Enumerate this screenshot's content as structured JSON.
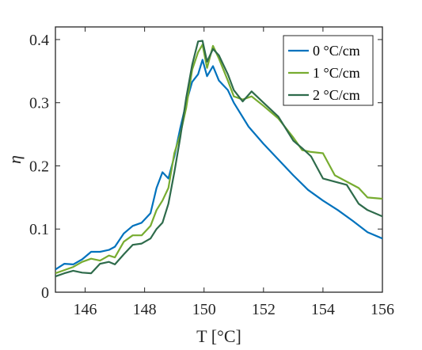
{
  "chart_data": {
    "type": "line",
    "xlabel": "T [°C]",
    "ylabel": "η",
    "xlim": [
      145,
      156
    ],
    "ylim": [
      0,
      0.42
    ],
    "x_ticks": [
      146,
      148,
      150,
      152,
      154,
      156
    ],
    "x_tick_labels": [
      "146",
      "148",
      "150",
      "152",
      "154",
      "156"
    ],
    "y_ticks": [
      0,
      0.1,
      0.2,
      0.3,
      0.4
    ],
    "y_tick_labels": [
      "0",
      "0.1",
      "0.2",
      "0.3",
      "0.4"
    ],
    "grid": false,
    "legend_position": "top-right",
    "series": [
      {
        "name": "0 °C/cm",
        "color": "#0072BD",
        "points": [
          [
            145.0,
            0.036
          ],
          [
            145.3,
            0.045
          ],
          [
            145.6,
            0.044
          ],
          [
            145.9,
            0.052
          ],
          [
            146.2,
            0.064
          ],
          [
            146.5,
            0.064
          ],
          [
            146.8,
            0.067
          ],
          [
            147.0,
            0.072
          ],
          [
            147.3,
            0.093
          ],
          [
            147.6,
            0.105
          ],
          [
            147.9,
            0.11
          ],
          [
            148.2,
            0.125
          ],
          [
            148.4,
            0.165
          ],
          [
            148.6,
            0.19
          ],
          [
            148.8,
            0.18
          ],
          [
            149.0,
            0.215
          ],
          [
            149.2,
            0.26
          ],
          [
            149.4,
            0.3
          ],
          [
            149.6,
            0.333
          ],
          [
            149.8,
            0.345
          ],
          [
            149.95,
            0.368
          ],
          [
            150.1,
            0.342
          ],
          [
            150.3,
            0.358
          ],
          [
            150.5,
            0.335
          ],
          [
            150.8,
            0.32
          ],
          [
            151.0,
            0.3
          ],
          [
            151.5,
            0.262
          ],
          [
            152.0,
            0.235
          ],
          [
            152.5,
            0.21
          ],
          [
            153.0,
            0.185
          ],
          [
            153.5,
            0.162
          ],
          [
            154.0,
            0.145
          ],
          [
            154.5,
            0.13
          ],
          [
            155.0,
            0.113
          ],
          [
            155.5,
            0.095
          ],
          [
            156.0,
            0.085
          ]
        ]
      },
      {
        "name": "1 °C/cm",
        "color": "#77AC30",
        "points": [
          [
            145.0,
            0.03
          ],
          [
            145.3,
            0.035
          ],
          [
            145.6,
            0.04
          ],
          [
            145.9,
            0.048
          ],
          [
            146.2,
            0.053
          ],
          [
            146.5,
            0.05
          ],
          [
            146.8,
            0.058
          ],
          [
            147.0,
            0.055
          ],
          [
            147.3,
            0.08
          ],
          [
            147.6,
            0.09
          ],
          [
            147.9,
            0.09
          ],
          [
            148.2,
            0.105
          ],
          [
            148.4,
            0.13
          ],
          [
            148.6,
            0.145
          ],
          [
            148.8,
            0.165
          ],
          [
            149.0,
            0.22
          ],
          [
            149.2,
            0.25
          ],
          [
            149.4,
            0.292
          ],
          [
            149.6,
            0.352
          ],
          [
            149.8,
            0.38
          ],
          [
            149.95,
            0.392
          ],
          [
            150.1,
            0.355
          ],
          [
            150.3,
            0.39
          ],
          [
            150.5,
            0.37
          ],
          [
            150.8,
            0.335
          ],
          [
            151.0,
            0.31
          ],
          [
            151.3,
            0.305
          ],
          [
            151.6,
            0.31
          ],
          [
            152.0,
            0.295
          ],
          [
            152.5,
            0.275
          ],
          [
            153.0,
            0.245
          ],
          [
            153.3,
            0.225
          ],
          [
            153.6,
            0.222
          ],
          [
            154.0,
            0.22
          ],
          [
            154.4,
            0.185
          ],
          [
            154.8,
            0.175
          ],
          [
            155.2,
            0.165
          ],
          [
            155.5,
            0.15
          ],
          [
            156.0,
            0.148
          ]
        ]
      },
      {
        "name": "2 °C/cm",
        "color": "#2E6B4B",
        "points": [
          [
            145.0,
            0.025
          ],
          [
            145.3,
            0.03
          ],
          [
            145.6,
            0.034
          ],
          [
            145.9,
            0.031
          ],
          [
            146.2,
            0.03
          ],
          [
            146.5,
            0.045
          ],
          [
            146.8,
            0.048
          ],
          [
            147.0,
            0.044
          ],
          [
            147.3,
            0.06
          ],
          [
            147.6,
            0.075
          ],
          [
            147.9,
            0.077
          ],
          [
            148.2,
            0.085
          ],
          [
            148.4,
            0.1
          ],
          [
            148.6,
            0.11
          ],
          [
            148.8,
            0.14
          ],
          [
            149.0,
            0.19
          ],
          [
            149.2,
            0.245
          ],
          [
            149.4,
            0.308
          ],
          [
            149.6,
            0.36
          ],
          [
            149.8,
            0.397
          ],
          [
            149.95,
            0.398
          ],
          [
            150.1,
            0.365
          ],
          [
            150.3,
            0.385
          ],
          [
            150.5,
            0.375
          ],
          [
            150.8,
            0.345
          ],
          [
            151.0,
            0.32
          ],
          [
            151.3,
            0.302
          ],
          [
            151.6,
            0.318
          ],
          [
            152.0,
            0.3
          ],
          [
            152.5,
            0.278
          ],
          [
            153.0,
            0.24
          ],
          [
            153.3,
            0.228
          ],
          [
            153.6,
            0.215
          ],
          [
            154.0,
            0.18
          ],
          [
            154.4,
            0.175
          ],
          [
            154.8,
            0.17
          ],
          [
            155.2,
            0.14
          ],
          [
            155.5,
            0.13
          ],
          [
            156.0,
            0.12
          ]
        ]
      }
    ]
  }
}
